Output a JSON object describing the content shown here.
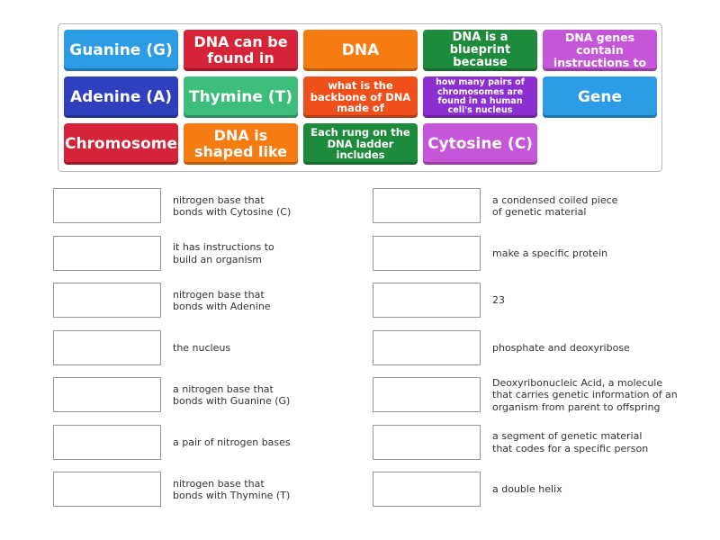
{
  "tiles": [
    "Guanine (G)",
    "DNA can be found in",
    "DNA",
    "DNA is a blueprint because",
    "DNA genes contain instructions to",
    "Adenine (A)",
    "Thymine (T)",
    "what is the backbone of DNA made of",
    "how many pairs of chromosomes are found in a human cell's nucleus",
    "Gene",
    "Chromosome",
    "DNA is shaped like",
    "Each rung on the DNA ladder includes",
    "Cytosine (C)"
  ],
  "left_prompts": [
    "nitrogen base that bonds with Cytosine (C)",
    "it has instructions to build an organism",
    "nitrogen base that bonds with Adenine",
    "the nucleus",
    "a nitrogen base that bonds with Guanine (G)",
    "a pair of nitrogen bases",
    "nitrogen base that bonds with Thymine (T)"
  ],
  "right_prompts": [
    "a condensed coiled piece of genetic material",
    "make a specific protein",
    "23",
    "phosphate and deoxyribose",
    "Deoxyribonucleic Acid, a molecule that carries genetic information of an organism from parent to offspring",
    "a segment of genetic material that codes for a specific person",
    "a double helix"
  ]
}
